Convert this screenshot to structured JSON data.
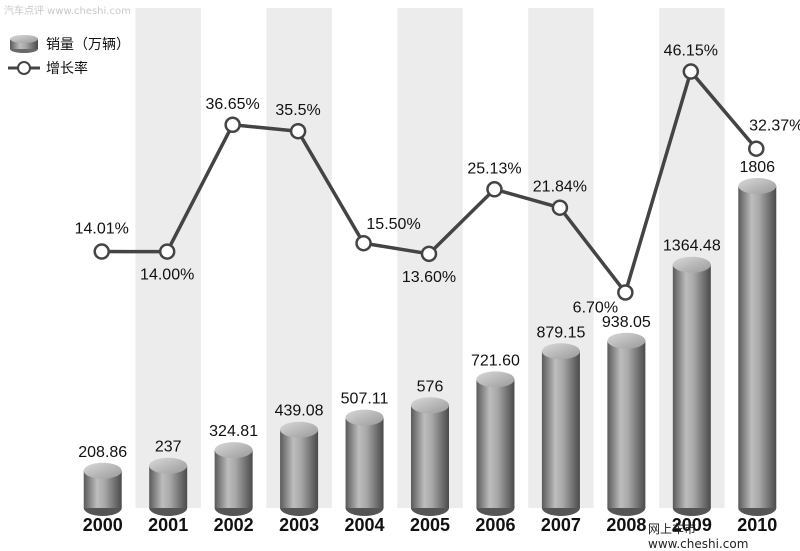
{
  "watermarks": {
    "top": "汽车点评 www.cheshi.com",
    "bottom": "网上车市 www.cheshi.com"
  },
  "chart_data": {
    "type": "bar",
    "categories": [
      "2000",
      "2001",
      "2002",
      "2003",
      "2004",
      "2005",
      "2006",
      "2007",
      "2008",
      "2009",
      "2010"
    ],
    "series": [
      {
        "name": "销量（万辆）",
        "type": "bar",
        "values": [
          208.86,
          237,
          324.81,
          439.08,
          507.11,
          576,
          721.6,
          879.15,
          938.05,
          1364.48,
          1806
        ],
        "labels": [
          "208.86",
          "237",
          "324.81",
          "439.08",
          "507.11",
          "576",
          "721.60",
          "879.15",
          "938.05",
          "1364.48",
          "1806"
        ]
      },
      {
        "name": "增长率",
        "type": "line",
        "values": [
          14.01,
          14.0,
          36.65,
          35.5,
          15.5,
          13.6,
          25.13,
          21.84,
          6.7,
          46.15,
          32.37
        ],
        "labels": [
          "14.01%",
          "14.00%",
          "36.65%",
          "35.5%",
          "15.50%",
          "13.60%",
          "25.13%",
          "21.84%",
          "6.70%",
          "46.15%",
          "32.37%"
        ]
      }
    ],
    "title": "",
    "legend": "top-left",
    "grid": false,
    "colors": {
      "bar": "#8c8c8c",
      "line": "#444444",
      "band": "#ececec"
    }
  }
}
